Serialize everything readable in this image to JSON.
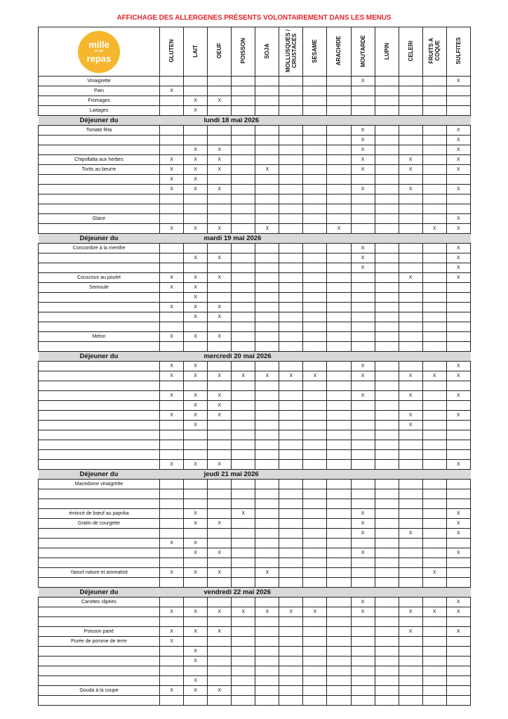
{
  "title": "AFFICHAGE DES ALLERGENES PRÉSENTS VOLONTAIREMENT DANS LES MENUS",
  "logo": {
    "line1": "mille",
    "line2": "et un",
    "line3": "repas",
    "color": "#f6b72f"
  },
  "mark": "X",
  "allergens": [
    "GLUTEN",
    "LAIT",
    "OEUF",
    "POISSON",
    "SOJA",
    "MOLLUSQUES /\nCRUSTACÉS",
    "SÉSAME",
    "ARACHIDE",
    "MOUTARDE",
    "LUPIN",
    "CELERI",
    "FRUITS A\nCOQUE",
    "SULFITES"
  ],
  "common_rows": [
    {
      "name": "Vinaigrette",
      "x": [
        8,
        12
      ]
    },
    {
      "name": "Pain",
      "x": [
        0
      ]
    },
    {
      "name": "Fromages",
      "x": [
        1,
        2
      ]
    },
    {
      "name": "Laitages",
      "x": [
        1
      ]
    }
  ],
  "sections": [
    {
      "label": "Déjeuner du",
      "date": "lundi 18 mai 2026",
      "rows": [
        {
          "name": "Tomate féta",
          "x": [
            8,
            12
          ]
        },
        {
          "name": "",
          "x": [
            8,
            12
          ]
        },
        {
          "name": "",
          "x": [
            1,
            2,
            8,
            12
          ]
        },
        {
          "name": "Chipollatta aux herbes",
          "x": [
            0,
            1,
            2,
            8,
            10,
            12
          ]
        },
        {
          "name": "Tortis au beurre",
          "x": [
            0,
            1,
            2,
            4,
            8,
            10,
            12
          ]
        },
        {
          "name": "",
          "x": [
            0,
            1
          ]
        },
        {
          "name": "",
          "x": [
            0,
            1,
            2,
            8,
            10,
            12
          ]
        },
        {
          "name": "",
          "x": []
        },
        {
          "name": "",
          "x": []
        },
        {
          "name": "Glace",
          "x": [
            12
          ]
        },
        {
          "name": "",
          "x": [
            0,
            1,
            2,
            4,
            7,
            11,
            12
          ]
        }
      ]
    },
    {
      "label": "Déjeuner du",
      "date": "mardi 19 mai 2026",
      "rows": [
        {
          "name": "Concombre à la menthe",
          "x": [
            8,
            12
          ]
        },
        {
          "name": "",
          "x": [
            1,
            2,
            8,
            12
          ]
        },
        {
          "name": "",
          "x": [
            8,
            12
          ]
        },
        {
          "name": "Couscous au poulet",
          "x": [
            0,
            1,
            2,
            10,
            12
          ]
        },
        {
          "name": "Semoule",
          "x": [
            0,
            1
          ]
        },
        {
          "name": "",
          "x": [
            1
          ]
        },
        {
          "name": "",
          "x": [
            0,
            1,
            2
          ]
        },
        {
          "name": "",
          "x": [
            1,
            2
          ]
        },
        {
          "name": "",
          "x": []
        },
        {
          "name": "Melon",
          "x": [
            0,
            1,
            2
          ]
        },
        {
          "name": "",
          "x": []
        }
      ]
    },
    {
      "label": "Déjeuner du",
      "date": "mercredi 20 mai 2026",
      "rows": [
        {
          "name": "",
          "x": [
            0,
            1,
            8,
            12
          ]
        },
        {
          "name": "",
          "x": [
            0,
            1,
            2,
            3,
            4,
            5,
            6,
            8,
            10,
            11,
            12
          ]
        },
        {
          "name": "",
          "x": []
        },
        {
          "name": "",
          "x": [
            0,
            1,
            2,
            8,
            10,
            12
          ]
        },
        {
          "name": "",
          "x": [
            1,
            2
          ]
        },
        {
          "name": "",
          "x": [
            0,
            1,
            2,
            10,
            12
          ]
        },
        {
          "name": "",
          "x": [
            1,
            10
          ]
        },
        {
          "name": "",
          "x": []
        },
        {
          "name": "",
          "x": []
        },
        {
          "name": "",
          "x": []
        },
        {
          "name": "",
          "x": [
            0,
            1,
            2,
            12
          ]
        }
      ]
    },
    {
      "label": "Déjeuner du",
      "date": "jeudi 21 mai 2026",
      "rows": [
        {
          "name": "Macedoine vinaigrette",
          "x": []
        },
        {
          "name": "",
          "x": []
        },
        {
          "name": "",
          "x": []
        },
        {
          "name": "émincé de bœuf au paprika",
          "x": [
            1,
            3,
            8,
            12
          ]
        },
        {
          "name": "Gratin de courgette",
          "x": [
            1,
            2,
            8,
            12
          ]
        },
        {
          "name": "",
          "x": [
            8,
            10,
            12
          ]
        },
        {
          "name": "",
          "x": [
            0,
            1
          ]
        },
        {
          "name": "",
          "x": [
            1,
            2,
            8,
            12
          ]
        },
        {
          "name": "",
          "x": []
        },
        {
          "name": "Yaourt nature et aromatisé",
          "x": [
            0,
            1,
            2,
            4,
            11
          ]
        },
        {
          "name": "",
          "x": []
        }
      ]
    },
    {
      "label": "Déjeuner du",
      "date": "vendredi 22 mai 2026",
      "rows": [
        {
          "name": "Carottes râpées",
          "x": [
            8,
            12
          ]
        },
        {
          "name": "",
          "x": [
            0,
            1,
            2,
            3,
            4,
            5,
            6,
            8,
            10,
            11,
            12
          ]
        },
        {
          "name": "",
          "x": []
        },
        {
          "name": "Poisson pané",
          "x": [
            0,
            1,
            2,
            10,
            12
          ]
        },
        {
          "name": "Purée de pomme de terre",
          "x": [
            0
          ]
        },
        {
          "name": "",
          "x": [
            1
          ]
        },
        {
          "name": "",
          "x": [
            1
          ]
        },
        {
          "name": "",
          "x": []
        },
        {
          "name": "",
          "x": [
            1
          ]
        },
        {
          "name": "Gouda à la coupe",
          "x": [
            0,
            1,
            2
          ]
        },
        {
          "name": "",
          "x": []
        }
      ]
    }
  ]
}
